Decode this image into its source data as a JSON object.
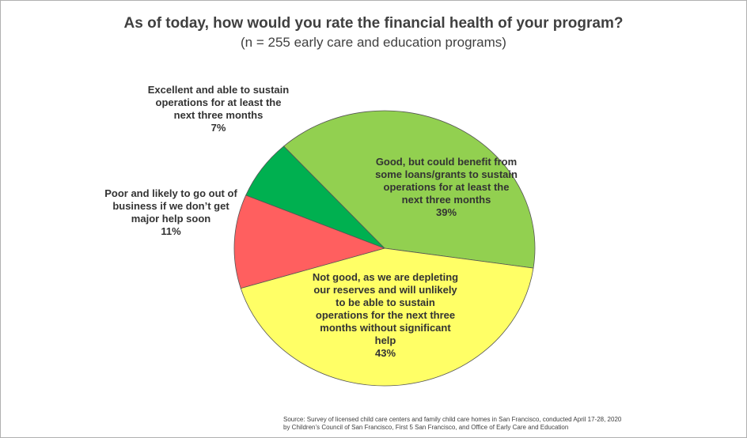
{
  "chart_data": {
    "type": "pie",
    "title": "As of today, how would you rate the financial health of your program?",
    "subtitle": "(n = 255 early care and education programs)",
    "slices": [
      {
        "label": "Good,  but could benefit from some loans/grants to sustain operations for at least the next three months",
        "value": 39,
        "pct_label": "39%",
        "color": "#92d050"
      },
      {
        "label": "Not good, as we are depleting our reserves and will unlikely to be able to sustain operations for the next three months without significant help",
        "value": 43,
        "pct_label": "43%",
        "color": "#ffff66"
      },
      {
        "label": "Poor and likely to go out of business if we don’t get major help soon",
        "value": 11,
        "pct_label": "11%",
        "color": "#ff5f5f"
      },
      {
        "label": "Excellent and able to sustain operations for at least the next three months",
        "value": 7,
        "pct_label": "7%",
        "color": "#00b050"
      }
    ],
    "source_line1": "Source:  Survey of licensed child care centers and family child care homes in San Francisco, conducted  April 17-28, 2020",
    "source_line2": "by Children’s Council of San Francisco, First 5 San Francisco, and Office of Early Care and Education"
  }
}
